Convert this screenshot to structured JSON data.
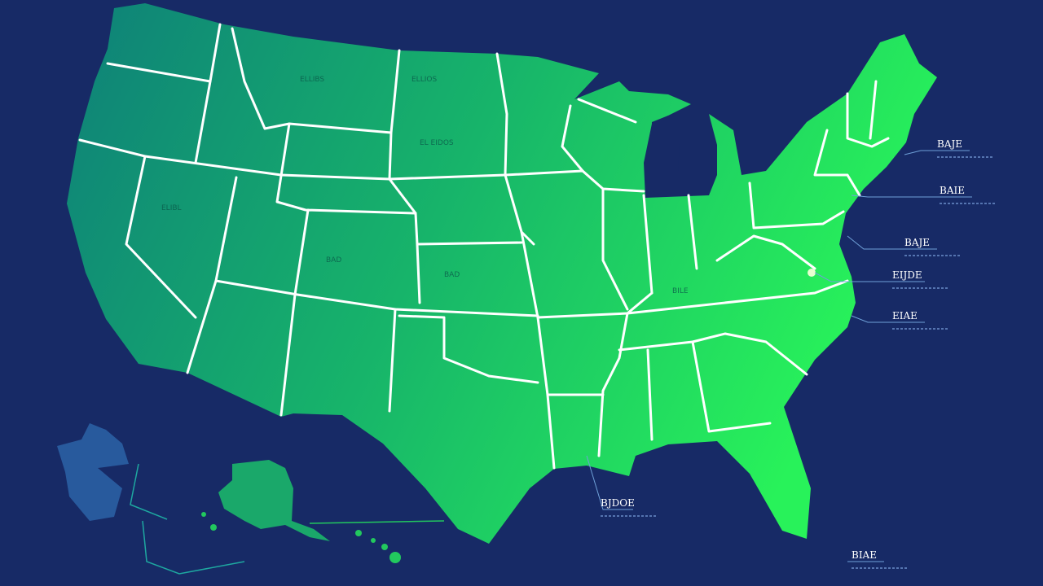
{
  "callouts": [
    {
      "label": "BAJE"
    },
    {
      "label": "BAIE"
    },
    {
      "label": "BAJE"
    },
    {
      "label": "EIJDE"
    },
    {
      "label": "EIAE"
    },
    {
      "label": "BJDOE"
    },
    {
      "label": "BIAE"
    }
  ],
  "state_labels": [
    "ELLIBS",
    "ELLIOS",
    "EL EIDOS",
    "BAD",
    "BAD",
    "ELIBL",
    "BILE"
  ]
}
